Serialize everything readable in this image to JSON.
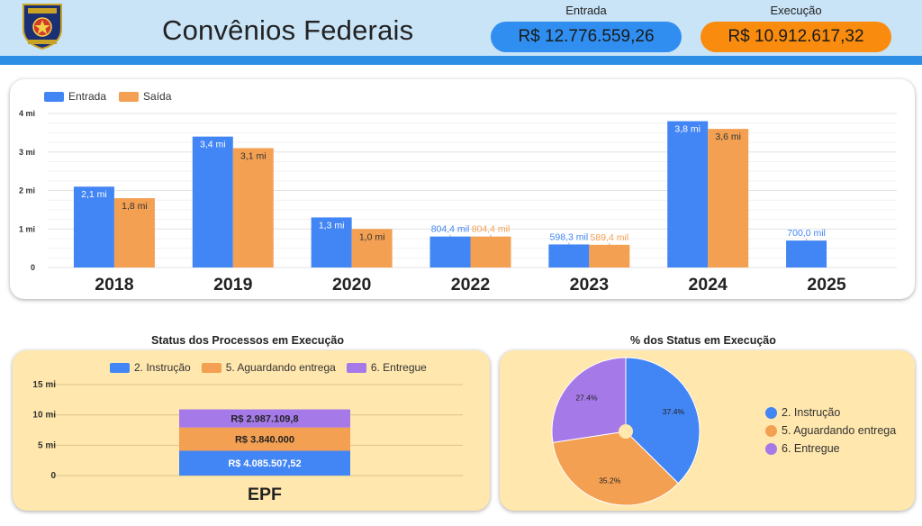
{
  "header": {
    "title": "Convênios Federais",
    "logo_text": "POLÍCIA MILITAR PERNAMBUCO",
    "kpis": [
      {
        "label": "Entrada",
        "value": "R$ 12.776.559,26",
        "color": "#2f8ef0"
      },
      {
        "label": "Execução",
        "value": "R$ 10.912.617,32",
        "color": "#f98c0e"
      }
    ]
  },
  "chart_data": [
    {
      "type": "bar",
      "title": "",
      "legend": [
        "Entrada",
        "Saída"
      ],
      "colors": [
        "#4285f4",
        "#f4a053"
      ],
      "categories": [
        "2018",
        "2019",
        "2020",
        "2022",
        "2023",
        "2024",
        "2025"
      ],
      "series": [
        {
          "name": "Entrada",
          "values": [
            2.1,
            3.4,
            1.3,
            0.8044,
            0.5983,
            3.8,
            0.7
          ],
          "labels": [
            "2,1 mi",
            "3,4 mi",
            "1,3 mi",
            "804,4 mil",
            "598,3 mil",
            "3,8 mi",
            "700,0 mil"
          ]
        },
        {
          "name": "Saída",
          "values": [
            1.8,
            3.1,
            1.0,
            0.8044,
            0.5894,
            3.6,
            null
          ],
          "labels": [
            "1,8 mi",
            "3,1 mi",
            "1,0 mi",
            "804,4 mil",
            "589,4 mil",
            "3,6 mi",
            ""
          ]
        }
      ],
      "yticks": [
        "0",
        "1 mi",
        "2 mi",
        "3 mi",
        "4 mi"
      ],
      "ylim": [
        0,
        4
      ]
    },
    {
      "type": "bar",
      "stacked": true,
      "title": "Status dos Processos em Execução",
      "categories": [
        "EPF"
      ],
      "series": [
        {
          "name": "2. Instrução",
          "values": [
            4.0855
          ],
          "label": "R$ 4.085.507,52",
          "color": "#4285f4"
        },
        {
          "name": "5. Aguardando entrega",
          "values": [
            3.84
          ],
          "label": "R$ 3.840.000",
          "color": "#f4a053"
        },
        {
          "name": "6. Entregue",
          "values": [
            2.9871
          ],
          "label": "R$ 2.987.109,8",
          "color": "#a57ae8"
        }
      ],
      "yticks": [
        "0",
        "5 mi",
        "10 mi",
        "15 mi"
      ],
      "ylim": [
        0,
        15
      ]
    },
    {
      "type": "pie",
      "title": "% dos Status em Execução",
      "slices": [
        {
          "name": "2. Instrução",
          "value": 37.4,
          "label": "37.4%",
          "color": "#4285f4"
        },
        {
          "name": "5. Aguardando entrega",
          "value": 35.2,
          "label": "35.2%",
          "color": "#f4a053"
        },
        {
          "name": "6. Entregue",
          "value": 27.4,
          "label": "27.4%",
          "color": "#a57ae8"
        }
      ]
    }
  ]
}
